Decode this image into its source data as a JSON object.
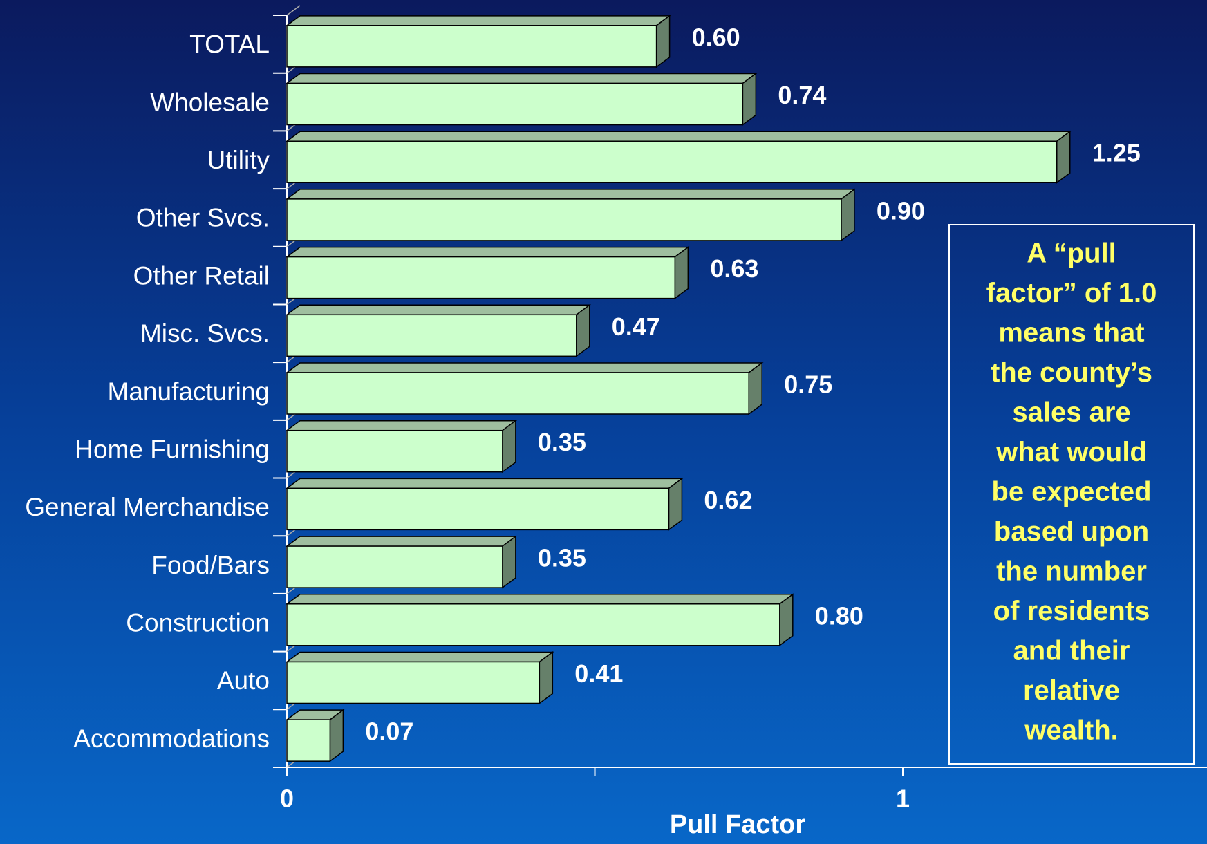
{
  "chart_data": {
    "type": "bar3d_horizontal",
    "categories": [
      "TOTAL",
      "Wholesale",
      "Utility",
      "Other Svcs.",
      "Other Retail",
      "Misc. Svcs.",
      "Manufacturing",
      "Home Furnishing",
      "General Merchandise",
      "Food/Bars",
      "Construction",
      "Auto",
      "Accommodations"
    ],
    "values": [
      0.6,
      0.74,
      1.25,
      0.9,
      0.63,
      0.47,
      0.75,
      0.35,
      0.62,
      0.35,
      0.8,
      0.41,
      0.07
    ],
    "value_labels": [
      "0.60",
      "0.74",
      "1.25",
      "0.90",
      "0.63",
      "0.47",
      "0.75",
      "0.35",
      "0.62",
      "0.35",
      "0.80",
      "0.41",
      "0.07"
    ],
    "color": "#ccffcc",
    "xlabel": "Pull Factor",
    "xlim": [
      0,
      1.5
    ],
    "xticks": [
      0,
      1
    ],
    "xticks_minor": [
      0.5
    ],
    "annotation_lines": [
      "A “pull",
      "factor” of 1.0",
      "means that",
      "the county’s",
      "sales are",
      "what would",
      "be expected",
      "based upon",
      "the number",
      "of residents",
      "and their",
      "relative",
      "wealth."
    ]
  }
}
